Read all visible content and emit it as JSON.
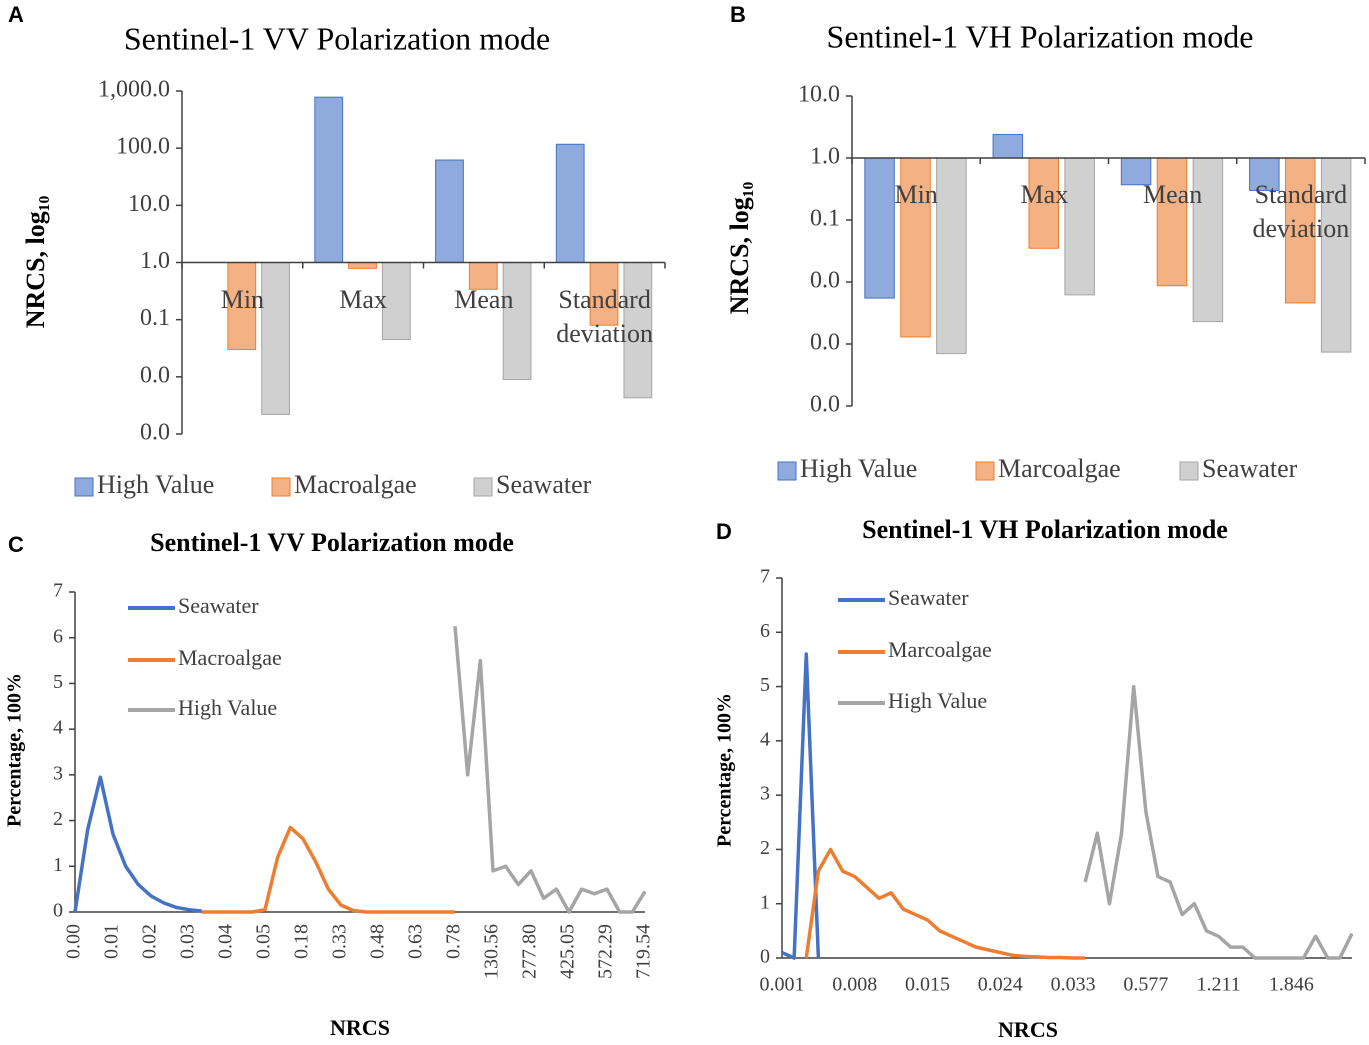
{
  "chart_data": [
    {
      "type": "bar",
      "label": "A",
      "title": "Sentinel-1 VV Polarization mode",
      "y_label": "NRCS, log₁₀",
      "log_scale": true,
      "categories": [
        "Min",
        "Max",
        "Mean",
        "Standard deviation"
      ],
      "series": [
        {
          "name": "High Value",
          "color": "#4472c4",
          "fill": "#8faadc",
          "values": [
            null,
            780,
            62,
            117
          ]
        },
        {
          "name": "Macroalgae",
          "color": "#ed7d31",
          "fill": "#f4b183",
          "values": [
            0.03,
            0.79,
            0.34,
            0.08
          ]
        },
        {
          "name": "Seawater",
          "color": "#a5a5a5",
          "fill": "#d0d0d0",
          "values": [
            0.0022,
            0.045,
            0.009,
            0.0043
          ]
        }
      ],
      "ylim": [
        0.001,
        1000
      ],
      "yticks": [
        {
          "value": 1000,
          "label": "1,000.0"
        },
        {
          "value": 100,
          "label": "100.0"
        },
        {
          "value": 10,
          "label": "10.0"
        },
        {
          "value": 1,
          "label": "1.0"
        },
        {
          "value": 0.1,
          "label": "0.1"
        },
        {
          "value": 0.01,
          "label": "0.0"
        },
        {
          "value": 0.001,
          "label": "0.0"
        }
      ]
    },
    {
      "type": "bar",
      "label": "B",
      "title": "Sentinel-1 VH Polarization mode",
      "y_label": "NRCS, log₁₀",
      "log_scale": true,
      "categories": [
        "Min",
        "Max",
        "Mean",
        "Standard deviation"
      ],
      "series": [
        {
          "name": "High Value",
          "color": "#4472c4",
          "fill": "#8faadc",
          "values": [
            0.0055,
            2.4,
            0.37,
            0.3
          ]
        },
        {
          "name": "Marcoalgae",
          "color": "#ed7d31",
          "fill": "#f4b183",
          "values": [
            0.0013,
            0.035,
            0.0087,
            0.0046
          ]
        },
        {
          "name": "Seawater",
          "color": "#a5a5a5",
          "fill": "#d0d0d0",
          "values": [
            0.0007,
            0.0062,
            0.0023,
            0.00074
          ]
        }
      ],
      "ylim": [
        0.0001,
        10
      ],
      "yticks": [
        {
          "value": 10,
          "label": "10.0"
        },
        {
          "value": 1,
          "label": "1.0"
        },
        {
          "value": 0.1,
          "label": "0.1"
        },
        {
          "value": 0.01,
          "label": "0.0"
        },
        {
          "value": 0.001,
          "label": "0.0"
        },
        {
          "value": 0.0001,
          "label": "0.0"
        }
      ]
    },
    {
      "type": "line",
      "label": "C",
      "title": "Sentinel-1 VV Polarization mode",
      "x_label": "NRCS",
      "y_label": "Percentage, 100%",
      "xtick_rotation": 90,
      "categories": [
        "0.00",
        null,
        null,
        "0.01",
        null,
        null,
        "0.02",
        null,
        null,
        "0.03",
        null,
        null,
        "0.04",
        null,
        null,
        "0.05",
        null,
        null,
        "0.18",
        null,
        null,
        "0.33",
        null,
        null,
        "0.48",
        null,
        null,
        "0.63",
        null,
        null,
        "0.78",
        null,
        null,
        "130.56",
        null,
        null,
        "277.80",
        null,
        null,
        "425.05",
        null,
        null,
        "572.29",
        null,
        null,
        "719.54"
      ],
      "series": [
        {
          "name": "Seawater",
          "color": "#4472c4",
          "values": [
            0,
            1.8,
            2.95,
            1.7,
            1.0,
            0.6,
            0.35,
            0.2,
            0.1,
            0.05,
            0.02,
            null,
            null,
            null,
            null,
            null,
            null,
            null,
            null,
            null,
            null,
            null,
            null,
            null,
            null,
            null,
            null,
            null,
            null,
            null,
            null,
            null,
            null,
            null,
            null,
            null,
            null,
            null,
            null,
            null,
            null,
            null,
            null,
            null,
            null,
            null
          ]
        },
        {
          "name": "Macroalgae",
          "color": "#ed7d31",
          "values": [
            null,
            null,
            null,
            null,
            null,
            null,
            null,
            null,
            null,
            null,
            0,
            0,
            0,
            0,
            0,
            0.05,
            1.2,
            1.85,
            1.6,
            1.1,
            0.5,
            0.15,
            0.03,
            0,
            0,
            0,
            0,
            0,
            0,
            0,
            0,
            null,
            null,
            null,
            null,
            null,
            null,
            null,
            null,
            null,
            null,
            null,
            null,
            null,
            null,
            null
          ]
        },
        {
          "name": "High Value",
          "color": "#a5a5a5",
          "values": [
            null,
            null,
            null,
            null,
            null,
            null,
            null,
            null,
            null,
            null,
            null,
            null,
            null,
            null,
            null,
            null,
            null,
            null,
            null,
            null,
            null,
            null,
            null,
            null,
            null,
            null,
            null,
            null,
            null,
            null,
            6.25,
            3.0,
            5.5,
            0.9,
            1.0,
            0.6,
            0.9,
            0.3,
            0.5,
            0,
            0.5,
            0.4,
            0.5,
            0,
            0,
            0.45
          ]
        }
      ],
      "ylim": [
        0,
        7
      ],
      "yticks": [
        0,
        1,
        2,
        3,
        4,
        5,
        6,
        7
      ]
    },
    {
      "type": "line",
      "label": "D",
      "title": "Sentinel-1 VH Polarization mode",
      "x_label": "NRCS",
      "y_label": "Percentage, 100%",
      "xtick_rotation": 0,
      "categories": [
        "0.001",
        null,
        null,
        null,
        null,
        null,
        "0.008",
        null,
        null,
        null,
        null,
        null,
        "0.015",
        null,
        null,
        null,
        null,
        null,
        "0.024",
        null,
        null,
        null,
        null,
        null,
        "0.033",
        null,
        null,
        null,
        null,
        null,
        "0.577",
        null,
        null,
        null,
        null,
        null,
        "1.211",
        null,
        null,
        null,
        null,
        null,
        "1.846",
        null,
        null,
        null,
        null,
        null
      ],
      "series": [
        {
          "name": "Seawater",
          "color": "#4472c4",
          "values": [
            0.1,
            0,
            5.6,
            0,
            null,
            null,
            null,
            null,
            null,
            null,
            null,
            null,
            null,
            null,
            null,
            null,
            null,
            null,
            null,
            null,
            null,
            null,
            null,
            null,
            null,
            null,
            null,
            null,
            null,
            null,
            null,
            null,
            null,
            null,
            null,
            null,
            null,
            null,
            null,
            null,
            null,
            null,
            null,
            null,
            null,
            null,
            null,
            null
          ]
        },
        {
          "name": "Marcoalgae",
          "color": "#ed7d31",
          "values": [
            null,
            null,
            0,
            1.6,
            2.0,
            1.6,
            1.5,
            1.3,
            1.1,
            1.2,
            0.9,
            0.8,
            0.7,
            0.5,
            0.4,
            0.3,
            0.2,
            0.15,
            0.1,
            0.05,
            0.03,
            0.02,
            0.01,
            0.01,
            0,
            0,
            null,
            null,
            null,
            null,
            null,
            null,
            null,
            null,
            null,
            null,
            null,
            null,
            null,
            null,
            null,
            null,
            null,
            null,
            null,
            null,
            null,
            null
          ]
        },
        {
          "name": "High Value",
          "color": "#a5a5a5",
          "values": [
            null,
            null,
            null,
            null,
            null,
            null,
            null,
            null,
            null,
            null,
            null,
            null,
            null,
            null,
            null,
            null,
            null,
            null,
            null,
            null,
            null,
            null,
            null,
            null,
            null,
            1.4,
            2.3,
            1.0,
            2.3,
            5.0,
            2.7,
            1.5,
            1.4,
            0.8,
            1.0,
            0.5,
            0.4,
            0.2,
            0.2,
            0,
            0,
            0,
            0,
            0,
            0.4,
            0,
            0,
            0.45
          ]
        }
      ],
      "ylim": [
        0,
        7
      ],
      "yticks": [
        0,
        1,
        2,
        3,
        4,
        5,
        6,
        7
      ]
    }
  ]
}
